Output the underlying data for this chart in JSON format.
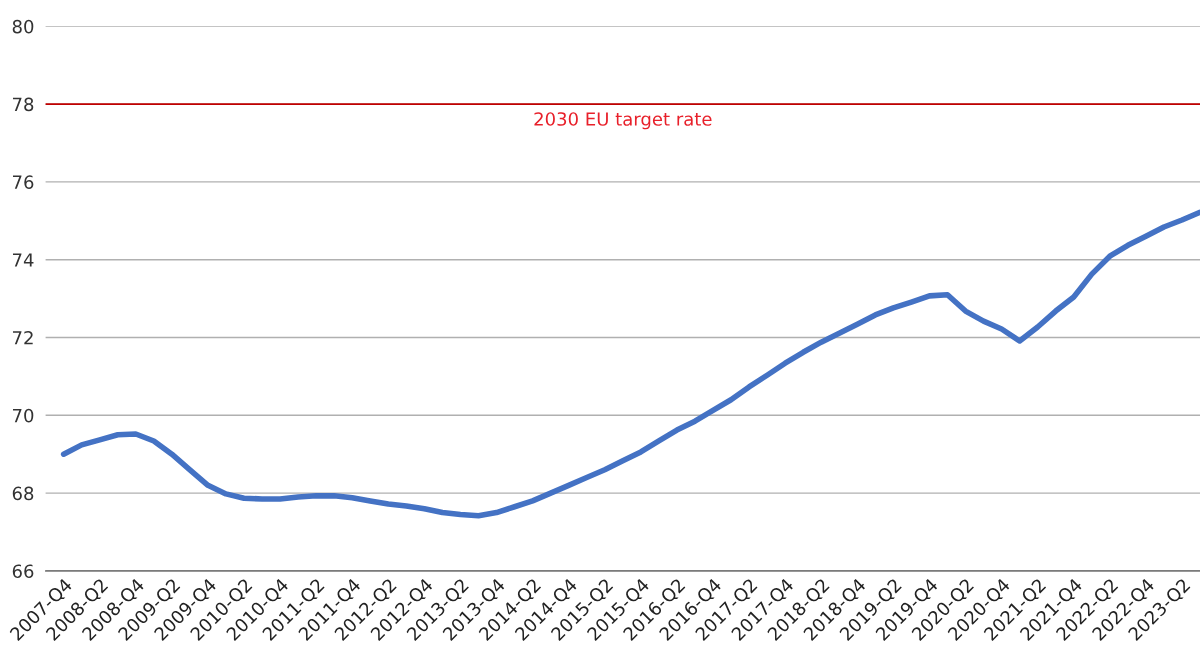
{
  "chart_data": {
    "type": "line",
    "categories": [
      "2007-Q4",
      null,
      "2008-Q2",
      null,
      "2008-Q4",
      null,
      "2009-Q2",
      null,
      "2009-Q4",
      null,
      "2010-Q2",
      null,
      "2010-Q4",
      null,
      "2011-Q2",
      null,
      "2011-Q4",
      null,
      "2012-Q2",
      null,
      "2012-Q4",
      null,
      "2013-Q2",
      null,
      "2013-Q4",
      null,
      "2014-Q2",
      null,
      "2014-Q4",
      null,
      "2015-Q2",
      null,
      "2015-Q4",
      null,
      "2016-Q2",
      null,
      "2016-Q4",
      null,
      "2017-Q2",
      null,
      "2017-Q4",
      null,
      "2018-Q2",
      null,
      "2018-Q4",
      null,
      "2019-Q2",
      null,
      "2019-Q4",
      null,
      "2020-Q2",
      null,
      "2020-Q4",
      null,
      "2021-Q2",
      null,
      "2021-Q4",
      null,
      "2022-Q2",
      null,
      "2022-Q4",
      null,
      "2023-Q2",
      null
    ],
    "series": [
      {
        "color": "#4472c4",
        "values": [
          69.0,
          69.24,
          69.37,
          69.5,
          69.52,
          69.34,
          69.0,
          68.6,
          68.2,
          67.98,
          67.87,
          67.85,
          67.85,
          67.9,
          67.93,
          67.93,
          67.88,
          67.8,
          67.72,
          67.67,
          67.6,
          67.5,
          67.45,
          67.42,
          67.5,
          67.65,
          67.8,
          68.0,
          68.2,
          68.4,
          68.6,
          68.83,
          69.06,
          69.34,
          69.62,
          69.85,
          70.13,
          70.4,
          70.73,
          71.03,
          71.34,
          71.62,
          71.88,
          72.11,
          72.34,
          72.58,
          72.76,
          72.91,
          73.07,
          73.1,
          72.68,
          72.42,
          72.22,
          71.91,
          72.27,
          72.68,
          73.04,
          73.63,
          74.09,
          74.37,
          74.6,
          74.84,
          75.02,
          75.22
        ]
      }
    ],
    "ylim": [
      66,
      80
    ],
    "yticks": [
      66,
      68,
      70,
      72,
      74,
      76,
      78,
      80
    ],
    "grid": "y",
    "legend": false,
    "marker": "none",
    "line_style": "solid",
    "ref_lines": [
      {
        "axis": "y",
        "value": 78,
        "label": "2030 EU target rate",
        "color": "#c00000"
      }
    ]
  }
}
